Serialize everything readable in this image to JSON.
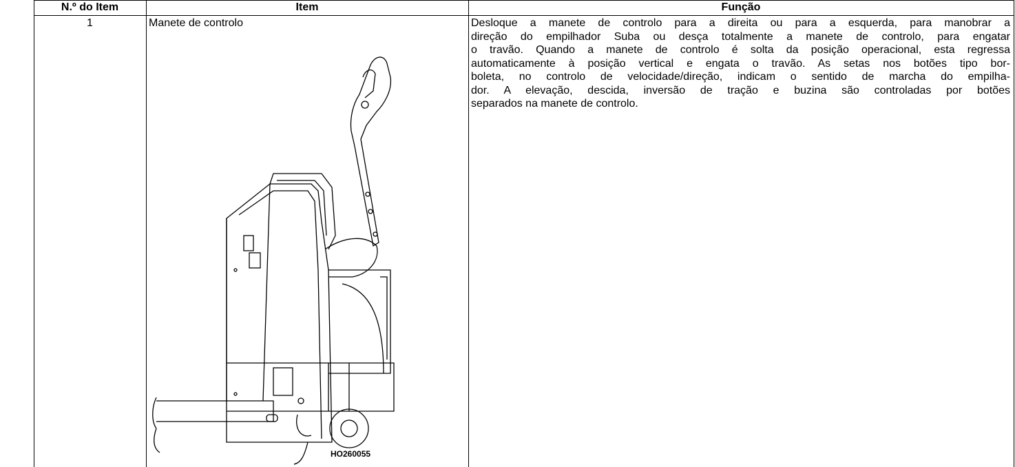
{
  "table": {
    "header": [
      "N.º do Item",
      "Item",
      "Função"
    ],
    "rows": [
      {
        "number": "1",
        "item": "Manete de controlo",
        "figure_label": "HO260055",
        "function": [
          "Desloque a manete de controlo para a direita ou para a esquerda, para manobrar a",
          "direção do empilhador Suba ou desça totalmente a manete de controlo, para engatar",
          "o travão. Quando a manete de controlo é solta da posição operacional, esta regressa",
          "automaticamente à posição vertical e engata o travão. As setas nos botões tipo bor-",
          "boleta, no controlo de velocidade/direção, indicam o sentido de marcha do empilha-",
          "dor. A elevação, descida, inversão de tração e buzina são controladas por botões",
          "separados na manete de controlo."
        ]
      }
    ]
  }
}
